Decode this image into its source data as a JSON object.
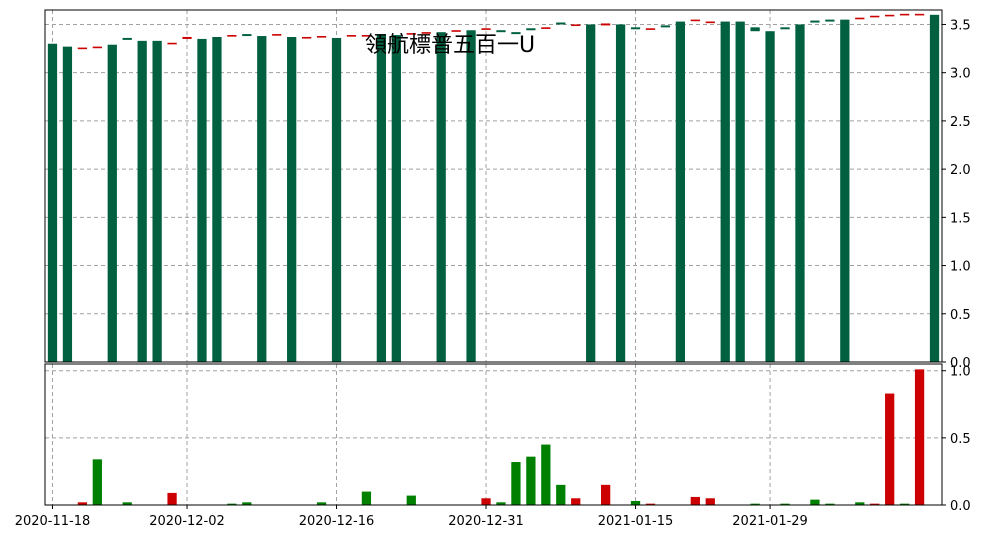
{
  "chart_data": [
    {
      "type": "candlestick",
      "title": "領航標普五百一U",
      "ylim": [
        0,
        3.65
      ],
      "yticks": [
        "0.0",
        "0.5",
        "1.0",
        "1.5",
        "2.0",
        "2.5",
        "3.0",
        "3.5"
      ],
      "grid": true,
      "colors": {
        "up": "#cc0000",
        "down": "#006040"
      },
      "x": [
        "2020-11-18",
        "2020-11-19",
        "2020-11-20",
        "2020-11-23",
        "2020-11-24",
        "2020-11-25",
        "2020-11-27",
        "2020-11-30",
        "2020-12-01",
        "2020-12-02",
        "2020-12-03",
        "2020-12-04",
        "2020-12-07",
        "2020-12-08",
        "2020-12-09",
        "2020-12-10",
        "2020-12-11",
        "2020-12-14",
        "2020-12-15",
        "2020-12-16",
        "2020-12-17",
        "2020-12-18",
        "2020-12-21",
        "2020-12-22",
        "2020-12-23",
        "2020-12-24",
        "2020-12-28",
        "2020-12-29",
        "2020-12-30",
        "2020-12-31",
        "2021-01-04",
        "2021-01-05",
        "2021-01-06",
        "2021-01-07",
        "2021-01-08",
        "2021-01-11",
        "2021-01-12",
        "2021-01-13",
        "2021-01-14",
        "2021-01-15",
        "2021-01-19",
        "2021-01-20",
        "2021-01-21",
        "2021-01-22",
        "2021-01-25",
        "2021-01-26",
        "2021-01-27",
        "2021-01-28",
        "2021-01-29",
        "2021-02-01",
        "2021-02-02",
        "2021-02-03",
        "2021-02-04",
        "2021-02-05",
        "2021-02-08",
        "2021-02-09",
        "2021-02-10",
        "2021-02-11",
        "2021-02-12",
        "2021-02-16"
      ],
      "open": [
        3.3,
        3.27,
        3.25,
        3.26,
        3.29,
        3.35,
        3.33,
        3.33,
        3.3,
        3.35,
        3.35,
        3.36,
        3.38,
        3.39,
        3.38,
        3.39,
        3.37,
        3.36,
        3.37,
        3.36,
        3.38,
        3.38,
        3.4,
        3.39,
        3.4,
        3.41,
        3.41,
        3.43,
        3.44,
        3.45,
        3.43,
        3.41,
        3.45,
        3.46,
        3.51,
        3.49,
        3.5,
        3.49,
        3.49,
        3.46,
        3.45,
        3.48,
        3.53,
        3.54,
        3.52,
        3.53,
        3.53,
        3.46,
        3.43,
        3.46,
        3.5,
        3.53,
        3.54,
        3.55,
        3.56,
        3.58,
        3.59,
        3.6,
        3.6,
        3.6
      ],
      "close": [
        3.3,
        3.27,
        3.25,
        3.26,
        3.29,
        3.34,
        3.33,
        3.33,
        3.3,
        3.36,
        3.35,
        3.37,
        3.38,
        3.38,
        3.38,
        3.39,
        3.37,
        3.36,
        3.37,
        3.35,
        3.38,
        3.38,
        3.4,
        3.39,
        3.4,
        3.41,
        3.42,
        3.43,
        3.44,
        3.45,
        3.42,
        3.4,
        3.44,
        3.46,
        3.5,
        3.49,
        3.5,
        3.5,
        3.5,
        3.45,
        3.45,
        3.47,
        3.52,
        3.54,
        3.52,
        3.53,
        3.52,
        3.43,
        3.42,
        3.45,
        3.5,
        3.52,
        3.53,
        3.55,
        3.56,
        3.58,
        3.59,
        3.6,
        3.6,
        3.6
      ]
    },
    {
      "type": "bar",
      "ylim": [
        0,
        1.05
      ],
      "yticks": [
        "0.0",
        "0.5",
        "1.0"
      ],
      "xticks": [
        "2020-11-18",
        "2020-12-02",
        "2020-12-16",
        "2020-12-31",
        "2021-01-15",
        "2021-01-29"
      ],
      "grid": true,
      "colors": {
        "up": "#cc0000",
        "down": "#008000"
      },
      "values": [
        0.0,
        0.0,
        0.02,
        0.34,
        0.0,
        0.02,
        0.0,
        0.0,
        0.09,
        0.0,
        0.0,
        0.0,
        0.01,
        0.02,
        0.0,
        0.0,
        0.0,
        0.0,
        0.02,
        0.0,
        0.0,
        0.1,
        0.0,
        0.0,
        0.07,
        0.0,
        0.0,
        0.0,
        0.0,
        0.05,
        0.02,
        0.32,
        0.36,
        0.45,
        0.15,
        0.05,
        0.0,
        0.15,
        0.0,
        0.03,
        0.01,
        0.0,
        0.0,
        0.06,
        0.05,
        0.0,
        0.0,
        0.01,
        0.0,
        0.01,
        0.0,
        0.04,
        0.01,
        0.0,
        0.02,
        0.01,
        0.83,
        0.01,
        1.01,
        0.0
      ]
    }
  ]
}
